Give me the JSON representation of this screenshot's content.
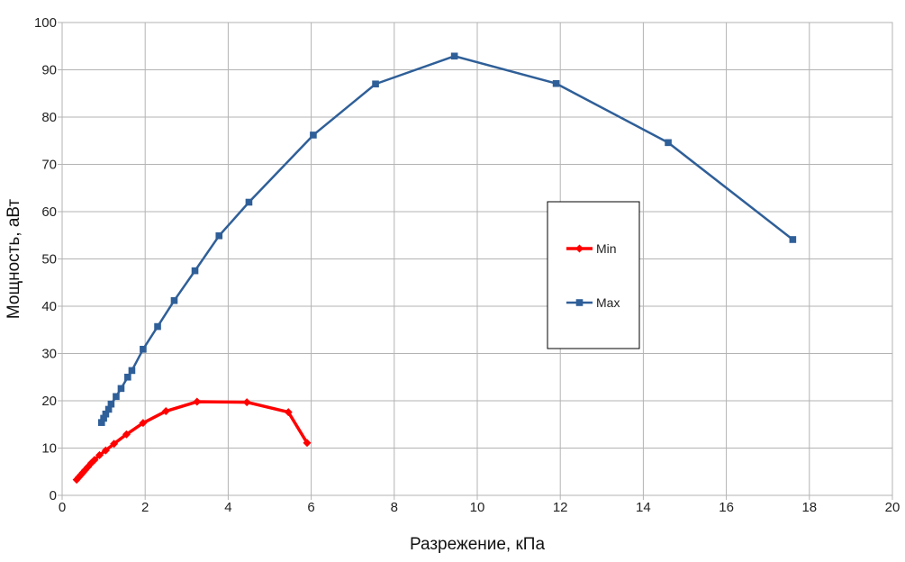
{
  "chart_data": {
    "type": "line",
    "xlabel": "Разрежение, кПа",
    "ylabel": "Мощность, аВт",
    "xlim": [
      0,
      20
    ],
    "ylim": [
      0,
      100
    ],
    "x_ticks": [
      0,
      2,
      4,
      6,
      8,
      10,
      12,
      14,
      16,
      18,
      20
    ],
    "y_ticks": [
      0,
      10,
      20,
      30,
      40,
      50,
      60,
      70,
      80,
      90,
      100
    ],
    "grid": true,
    "legend": {
      "position": "center-right"
    },
    "series": [
      {
        "name": "Min",
        "color": "#ff0000",
        "marker": "diamond",
        "points": [
          [
            0.35,
            3.3
          ],
          [
            0.4,
            3.8
          ],
          [
            0.45,
            4.3
          ],
          [
            0.5,
            4.8
          ],
          [
            0.55,
            5.3
          ],
          [
            0.62,
            6.0
          ],
          [
            0.7,
            6.8
          ],
          [
            0.78,
            7.5
          ],
          [
            0.9,
            8.5
          ],
          [
            1.05,
            9.5
          ],
          [
            1.25,
            10.9
          ],
          [
            1.55,
            12.9
          ],
          [
            1.95,
            15.3
          ],
          [
            2.5,
            17.8
          ],
          [
            3.25,
            19.8
          ],
          [
            4.45,
            19.7
          ],
          [
            5.45,
            17.6
          ],
          [
            5.9,
            11.1
          ]
        ]
      },
      {
        "name": "Max",
        "color": "#2f5f98",
        "marker": "square",
        "points": [
          [
            0.95,
            15.4
          ],
          [
            1.0,
            16.3
          ],
          [
            1.05,
            17.2
          ],
          [
            1.12,
            18.2
          ],
          [
            1.18,
            19.3
          ],
          [
            1.3,
            20.9
          ],
          [
            1.42,
            22.6
          ],
          [
            1.58,
            25.0
          ],
          [
            1.68,
            26.4
          ],
          [
            1.95,
            30.9
          ],
          [
            2.3,
            35.7
          ],
          [
            2.7,
            41.2
          ],
          [
            3.2,
            47.5
          ],
          [
            3.78,
            54.9
          ],
          [
            4.5,
            62.0
          ],
          [
            6.05,
            76.2
          ],
          [
            7.55,
            87.0
          ],
          [
            9.45,
            92.9
          ],
          [
            11.9,
            87.1
          ],
          [
            14.6,
            74.6
          ],
          [
            17.6,
            54.1
          ]
        ]
      }
    ]
  }
}
